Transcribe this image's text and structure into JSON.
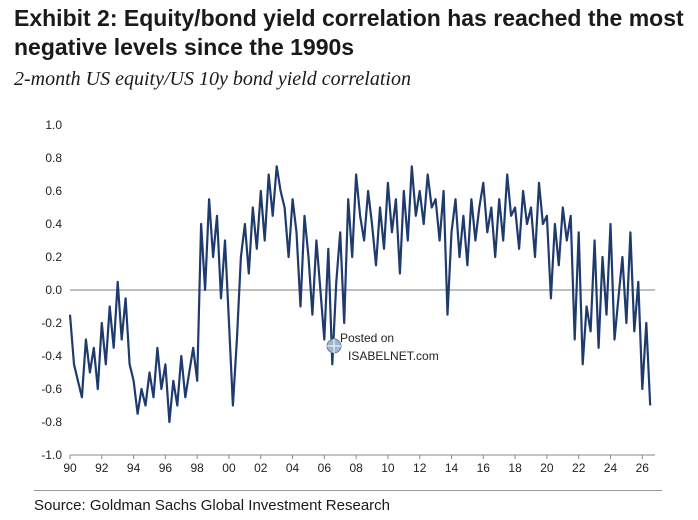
{
  "title": "Exhibit 2: Equity/bond yield correlation has reached the most negative levels since the 1990s",
  "subtitle": "2-month US equity/US 10y bond yield correlation",
  "source": "Source: Goldman Sachs Global Investment Research",
  "watermark": {
    "line1": "Posted on",
    "line2": "ISABELNET.com"
  },
  "colors": {
    "series": "#1f3b6e",
    "zero_line": "#555555",
    "text": "#1a1a1a"
  },
  "chart_data": {
    "type": "line",
    "title": "",
    "xlabel": "",
    "ylabel": "",
    "xlim": [
      1990,
      2026.8
    ],
    "ylim": [
      -1.0,
      1.0
    ],
    "grid": false,
    "x_ticks": [
      "90",
      "92",
      "94",
      "96",
      "98",
      "00",
      "02",
      "04",
      "06",
      "08",
      "10",
      "12",
      "14",
      "16",
      "18",
      "20",
      "22",
      "24",
      "26"
    ],
    "y_ticks": [
      "1.0",
      "0.8",
      "0.6",
      "0.4",
      "0.2",
      "0.0",
      "-0.2",
      "-0.4",
      "-0.6",
      "-0.8",
      "-1.0"
    ],
    "series": [
      {
        "name": "",
        "x": [
          1990.0,
          1990.25,
          1990.5,
          1990.75,
          1991.0,
          1991.25,
          1991.5,
          1991.75,
          1992.0,
          1992.25,
          1992.5,
          1992.75,
          1993.0,
          1993.25,
          1993.5,
          1993.75,
          1994.0,
          1994.25,
          1994.5,
          1994.75,
          1995.0,
          1995.25,
          1995.5,
          1995.75,
          1996.0,
          1996.25,
          1996.5,
          1996.75,
          1997.0,
          1997.25,
          1997.5,
          1997.75,
          1998.0,
          1998.25,
          1998.5,
          1998.75,
          1999.0,
          1999.25,
          1999.5,
          1999.75,
          2000.0,
          2000.25,
          2000.5,
          2000.75,
          2001.0,
          2001.25,
          2001.5,
          2001.75,
          2002.0,
          2002.25,
          2002.5,
          2002.75,
          2003.0,
          2003.25,
          2003.5,
          2003.75,
          2004.0,
          2004.25,
          2004.5,
          2004.75,
          2005.0,
          2005.25,
          2005.5,
          2005.75,
          2006.0,
          2006.25,
          2006.5,
          2006.75,
          2007.0,
          2007.25,
          2007.5,
          2007.75,
          2008.0,
          2008.25,
          2008.5,
          2008.75,
          2009.0,
          2009.25,
          2009.5,
          2009.75,
          2010.0,
          2010.25,
          2010.5,
          2010.75,
          2011.0,
          2011.25,
          2011.5,
          2011.75,
          2012.0,
          2012.25,
          2012.5,
          2012.75,
          2013.0,
          2013.25,
          2013.5,
          2013.75,
          2014.0,
          2014.25,
          2014.5,
          2014.75,
          2015.0,
          2015.25,
          2015.5,
          2015.75,
          2016.0,
          2016.25,
          2016.5,
          2016.75,
          2017.0,
          2017.25,
          2017.5,
          2017.75,
          2018.0,
          2018.25,
          2018.5,
          2018.75,
          2019.0,
          2019.25,
          2019.5,
          2019.75,
          2020.0,
          2020.25,
          2020.5,
          2020.75,
          2021.0,
          2021.25,
          2021.5,
          2021.75,
          2022.0,
          2022.25,
          2022.5,
          2022.75,
          2023.0,
          2023.25,
          2023.5,
          2023.75,
          2024.0,
          2024.25,
          2024.5,
          2024.75,
          2025.0,
          2025.25,
          2025.5,
          2025.75,
          2026.0,
          2026.25,
          2026.5
        ],
        "values": [
          -0.15,
          -0.45,
          -0.55,
          -0.65,
          -0.3,
          -0.5,
          -0.35,
          -0.6,
          -0.2,
          -0.45,
          -0.1,
          -0.35,
          0.05,
          -0.3,
          -0.05,
          -0.45,
          -0.55,
          -0.75,
          -0.6,
          -0.7,
          -0.5,
          -0.65,
          -0.35,
          -0.6,
          -0.45,
          -0.8,
          -0.55,
          -0.7,
          -0.4,
          -0.65,
          -0.5,
          -0.35,
          -0.55,
          0.4,
          0.0,
          0.55,
          0.2,
          0.45,
          -0.05,
          0.3,
          -0.2,
          -0.7,
          -0.3,
          0.2,
          0.4,
          0.1,
          0.5,
          0.25,
          0.6,
          0.3,
          0.7,
          0.45,
          0.75,
          0.6,
          0.5,
          0.2,
          0.55,
          0.35,
          -0.1,
          0.45,
          0.2,
          -0.15,
          0.3,
          0.0,
          -0.3,
          0.25,
          -0.45,
          0.05,
          0.35,
          -0.2,
          0.55,
          0.2,
          0.7,
          0.45,
          0.3,
          0.6,
          0.4,
          0.15,
          0.5,
          0.25,
          0.65,
          0.35,
          0.55,
          0.1,
          0.6,
          0.3,
          0.75,
          0.45,
          0.6,
          0.4,
          0.7,
          0.5,
          0.55,
          0.3,
          0.6,
          -0.15,
          0.35,
          0.55,
          0.2,
          0.45,
          0.15,
          0.55,
          0.3,
          0.5,
          0.65,
          0.35,
          0.5,
          0.2,
          0.55,
          0.3,
          0.7,
          0.45,
          0.5,
          0.25,
          0.6,
          0.4,
          0.5,
          0.2,
          0.65,
          0.4,
          0.45,
          -0.05,
          0.4,
          0.15,
          0.5,
          0.3,
          0.45,
          -0.3,
          0.35,
          -0.45,
          -0.1,
          -0.25,
          0.3,
          -0.35,
          0.2,
          -0.15,
          0.4,
          -0.3,
          -0.05,
          0.2,
          -0.2,
          0.35,
          -0.25,
          0.05,
          -0.6,
          -0.2,
          -0.7
        ]
      }
    ]
  }
}
